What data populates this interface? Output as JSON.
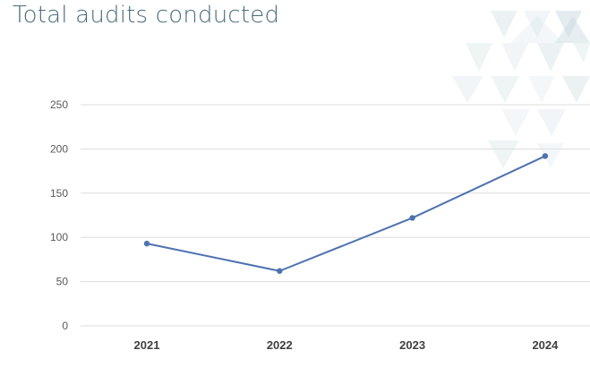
{
  "colors": {
    "title": "#4a6b7d",
    "line": "#4e72b0",
    "grid": "#dcdcdc",
    "decor": "#c9d9df"
  },
  "chart_data": {
    "type": "line",
    "title": "Total audits conducted",
    "categories": [
      "2021",
      "2022",
      "2023",
      "2024"
    ],
    "series": [
      {
        "values": [
          93,
          62,
          122,
          192
        ]
      }
    ],
    "ylim": [
      0,
      250
    ],
    "yticks": [
      0,
      50,
      100,
      150,
      200,
      250
    ],
    "grid": true,
    "legend": "none",
    "xlabel": "",
    "ylabel": ""
  }
}
